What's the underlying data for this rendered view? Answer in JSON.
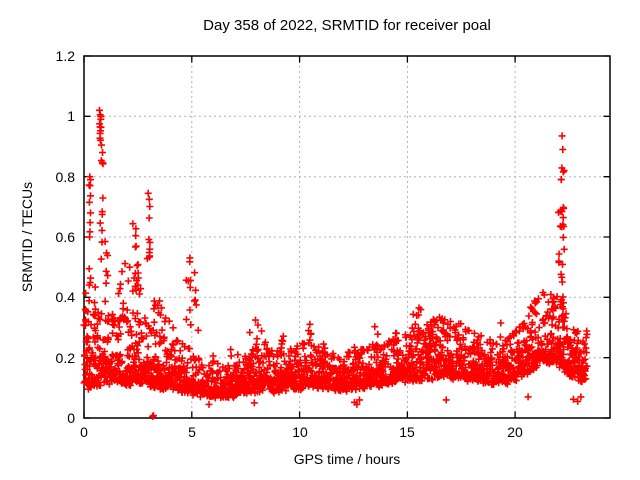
{
  "chart_data": {
    "type": "scatter",
    "title": "Day 358 of 2022, SRMTID for receiver poal",
    "xlabel": "GPS time / hours",
    "ylabel": "SRMTID / TECUs",
    "xlim": [
      0,
      24.4
    ],
    "ylim": [
      0,
      1.2
    ],
    "xticks": [
      0,
      5,
      10,
      15,
      20
    ],
    "xtick_labels": [
      "0",
      "5",
      "10",
      "15",
      "20"
    ],
    "yticks": [
      0,
      0.2,
      0.4,
      0.6,
      0.8,
      1,
      1.2
    ],
    "ytick_labels": [
      "0",
      "0.2",
      "0.4",
      "0.6",
      "0.8",
      "1",
      "1.2"
    ],
    "grid": true,
    "legend": "none",
    "background": "#ffffff",
    "frame_color": "#000000",
    "grid_color": "#b0b0b0",
    "marker": {
      "shape": "plus",
      "color": "#ff0000",
      "half_size": 3.5,
      "stroke_width": 1.6
    },
    "x_data_range": [
      0,
      23.35
    ],
    "notable_points": [
      [
        0.75,
        1.02
      ],
      [
        0.28,
        0.8
      ],
      [
        0.86,
        0.88
      ],
      [
        2.98,
        0.745
      ],
      [
        4.85,
        0.57
      ],
      [
        7.95,
        0.33
      ],
      [
        15.4,
        0.38
      ],
      [
        16.2,
        0.4
      ],
      [
        20.85,
        0.42
      ],
      [
        22.18,
        0.935
      ],
      [
        3.2,
        0.005
      ],
      [
        23.3,
        0.15
      ]
    ],
    "scatter_model": {
      "seed": 1358,
      "rate_per_hour": 100,
      "x_start": 0,
      "x_end": 23.35,
      "band_keyframes": [
        [
          0,
          0.09,
          0.1
        ],
        [
          0.5,
          0.11,
          0.11
        ],
        [
          1,
          0.11,
          0.1
        ],
        [
          1.5,
          0.12,
          0.09
        ],
        [
          2,
          0.11,
          0.1
        ],
        [
          2.5,
          0.12,
          0.1
        ],
        [
          3,
          0.11,
          0.09
        ],
        [
          3.5,
          0.1,
          0.08
        ],
        [
          4,
          0.095,
          0.075
        ],
        [
          4.5,
          0.09,
          0.07
        ],
        [
          5,
          0.085,
          0.06
        ],
        [
          5.5,
          0.075,
          0.045
        ],
        [
          6,
          0.07,
          0.04
        ],
        [
          6.5,
          0.07,
          0.04
        ],
        [
          7,
          0.075,
          0.045
        ],
        [
          7.5,
          0.085,
          0.055
        ],
        [
          8,
          0.09,
          0.065
        ],
        [
          8.5,
          0.09,
          0.06
        ],
        [
          9,
          0.09,
          0.055
        ],
        [
          9.5,
          0.1,
          0.055
        ],
        [
          10,
          0.1,
          0.06
        ],
        [
          10.5,
          0.105,
          0.065
        ],
        [
          11,
          0.1,
          0.055
        ],
        [
          11.5,
          0.095,
          0.05
        ],
        [
          12,
          0.09,
          0.05
        ],
        [
          12.5,
          0.1,
          0.055
        ],
        [
          13,
          0.1,
          0.055
        ],
        [
          13.5,
          0.105,
          0.06
        ],
        [
          14,
          0.11,
          0.06
        ],
        [
          14.5,
          0.115,
          0.065
        ],
        [
          15,
          0.12,
          0.07
        ],
        [
          15.5,
          0.125,
          0.08
        ],
        [
          16,
          0.13,
          0.085
        ],
        [
          16.5,
          0.135,
          0.085
        ],
        [
          17,
          0.135,
          0.08
        ],
        [
          17.5,
          0.13,
          0.075
        ],
        [
          18,
          0.125,
          0.07
        ],
        [
          18.5,
          0.12,
          0.065
        ],
        [
          19,
          0.115,
          0.06
        ],
        [
          19.5,
          0.115,
          0.065
        ],
        [
          20,
          0.12,
          0.07
        ],
        [
          20.5,
          0.14,
          0.08
        ],
        [
          21,
          0.17,
          0.095
        ],
        [
          21.5,
          0.185,
          0.1
        ],
        [
          22,
          0.17,
          0.1
        ],
        [
          22.5,
          0.14,
          0.08
        ],
        [
          23,
          0.12,
          0.07
        ],
        [
          23.35,
          0.13,
          0.07
        ]
      ],
      "clusters": [
        [
          0.12,
          0.12,
          0.22,
          0.42,
          16
        ],
        [
          0.28,
          0.06,
          0.44,
          0.8,
          9
        ],
        [
          0.55,
          0.1,
          0.25,
          0.45,
          8
        ],
        [
          0.76,
          0.05,
          0.9,
          1.02,
          7
        ],
        [
          0.82,
          0.07,
          0.52,
          0.88,
          10
        ],
        [
          1.05,
          0.1,
          0.32,
          0.6,
          9
        ],
        [
          1.5,
          0.2,
          0.25,
          0.45,
          8
        ],
        [
          1.95,
          0.2,
          0.3,
          0.52,
          10
        ],
        [
          2.35,
          0.12,
          0.42,
          0.65,
          12
        ],
        [
          2.6,
          0.1,
          0.3,
          0.52,
          8
        ],
        [
          3.0,
          0.06,
          0.5,
          0.74,
          9
        ],
        [
          3.3,
          0.15,
          0.28,
          0.4,
          6
        ],
        [
          3.65,
          0.2,
          0.25,
          0.42,
          9
        ],
        [
          4.1,
          0.15,
          0.2,
          0.33,
          6
        ],
        [
          4.85,
          0.12,
          0.3,
          0.57,
          9
        ],
        [
          5.2,
          0.1,
          0.28,
          0.5,
          6
        ],
        [
          6.1,
          0.15,
          0.15,
          0.25,
          5
        ],
        [
          7.0,
          0.2,
          0.15,
          0.24,
          5
        ],
        [
          7.95,
          0.3,
          0.18,
          0.33,
          13
        ],
        [
          8.5,
          0.15,
          0.18,
          0.3,
          6
        ],
        [
          9.15,
          0.1,
          0.2,
          0.33,
          6
        ],
        [
          9.7,
          0.15,
          0.15,
          0.25,
          5
        ],
        [
          10.5,
          0.12,
          0.18,
          0.32,
          7
        ],
        [
          11.2,
          0.15,
          0.15,
          0.25,
          5
        ],
        [
          12.0,
          0.2,
          0.14,
          0.22,
          5
        ],
        [
          12.6,
          0.15,
          0.16,
          0.27,
          6
        ],
        [
          13.6,
          0.12,
          0.18,
          0.31,
          5
        ],
        [
          14.5,
          0.15,
          0.18,
          0.3,
          6
        ],
        [
          15.4,
          0.25,
          0.22,
          0.38,
          9
        ],
        [
          16.2,
          0.25,
          0.22,
          0.4,
          9
        ],
        [
          16.7,
          0.2,
          0.2,
          0.33,
          6
        ],
        [
          17.4,
          0.2,
          0.2,
          0.34,
          7
        ],
        [
          18.2,
          0.2,
          0.18,
          0.28,
          5
        ],
        [
          19.4,
          0.1,
          0.22,
          0.33,
          5
        ],
        [
          20.3,
          0.2,
          0.2,
          0.3,
          6
        ],
        [
          20.85,
          0.2,
          0.24,
          0.42,
          10
        ],
        [
          21.5,
          0.3,
          0.24,
          0.42,
          11
        ],
        [
          22.15,
          0.14,
          0.32,
          0.72,
          30
        ],
        [
          22.2,
          0.08,
          0.72,
          0.85,
          5
        ],
        [
          22.65,
          0.25,
          0.16,
          0.3,
          8
        ]
      ],
      "outliers": [
        [
          0.72,
          1.02
        ],
        [
          0.75,
          1.005
        ],
        [
          0.78,
          0.99
        ],
        [
          0.74,
          0.965
        ],
        [
          0.77,
          0.952
        ],
        [
          0.27,
          0.8
        ],
        [
          0.3,
          0.79
        ],
        [
          0.28,
          0.77
        ],
        [
          0.25,
          0.715
        ],
        [
          0.3,
          0.68
        ],
        [
          0.86,
          0.88
        ],
        [
          0.87,
          0.845
        ],
        [
          2.98,
          0.745
        ],
        [
          3.03,
          0.725
        ],
        [
          22.18,
          0.935
        ],
        [
          22.21,
          0.89
        ],
        [
          3.18,
          0.005
        ],
        [
          3.22,
          0.008
        ],
        [
          12.55,
          0.052
        ],
        [
          12.66,
          0.045
        ],
        [
          12.78,
          0.06
        ],
        [
          22.7,
          0.062
        ],
        [
          22.9,
          0.055
        ],
        [
          23.05,
          0.07
        ],
        [
          7.9,
          0.05
        ],
        [
          5.8,
          0.045
        ],
        [
          16.8,
          0.06
        ],
        [
          20.6,
          0.07
        ]
      ]
    }
  }
}
